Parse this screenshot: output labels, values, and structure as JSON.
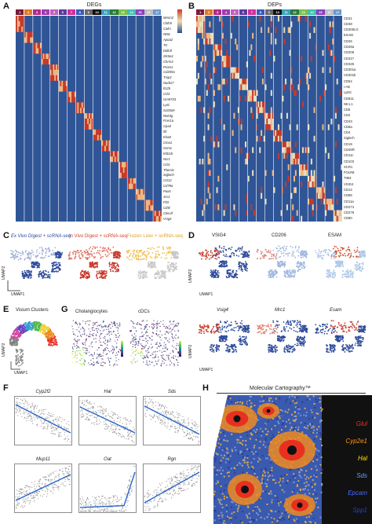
{
  "panels": {
    "A": {
      "letter": "A",
      "title": "DEGs",
      "genes": [
        "Mmrn2",
        "Cldn5",
        "Calm",
        "Nt5e",
        "Apoa2",
        "Ttr",
        "Ddit4l",
        "Slc5a1",
        "Chrm3",
        "Prom1",
        "Cd209a",
        "Tnip3",
        "Nudt17",
        "Il12b",
        "Ccl3",
        "Gm9733",
        "Ly6i",
        "S100a9",
        "Retnlg",
        "Fcer1a",
        "Cpa3",
        "Ifit",
        "Klra8",
        "Cma1",
        "Gzmc",
        "Klrb1b",
        "Ncr1",
        "Ccl4",
        "Themis",
        "Siglech",
        "Ccl12",
        "Cd79a",
        "Pax5",
        "Xcr1",
        "Flt3",
        "Cd5l",
        "Clec4f",
        "Vsig4"
      ],
      "clusters": [
        "1",
        "2",
        "3",
        "4",
        "5",
        "6",
        "7",
        "8",
        "9",
        "10",
        "11",
        "12",
        "13",
        "14",
        "15",
        "16",
        "17"
      ]
    },
    "B": {
      "letter": "B",
      "title": "DEPs",
      "proteins": [
        "CD31",
        "CD38",
        "CD300LG",
        "ESAM",
        "CD26",
        "CD49a",
        "CD206",
        "CD317",
        "CD326",
        "CD301a",
        "CD301b",
        "CD54",
        "I-AE",
        "Ly6G",
        "CD62L",
        "NK1.1",
        "CD5",
        "CD2",
        "CD43",
        "CD8a",
        "CD4",
        "Siglech",
        "CD19",
        "CD45R",
        "CD11c",
        "CD103",
        "XCR1",
        "FOLR8",
        "TIM4",
        "VSIG4",
        "CD14",
        "CD86",
        "CD11a",
        "CD274",
        "CD278",
        "CD80"
      ],
      "clusters": [
        "1",
        "2",
        "3",
        "4",
        "5",
        "6",
        "7",
        "8",
        "9",
        "10",
        "11",
        "12",
        "13",
        "14",
        "15",
        "16",
        "17"
      ]
    },
    "C": {
      "letter": "C",
      "titles": [
        "Ex Vivo Digest + scRNA-seq",
        "In Vivo Digest + scRNA-seq",
        "Frozen Liver + snRNA-seq"
      ],
      "axis_y": "UMAP2",
      "axis_x": "UMAP1"
    },
    "D": {
      "letter": "D",
      "titles_top": [
        "VSIG4",
        "CD206",
        "ESAM"
      ],
      "titles_bottom": [
        "Vsig4",
        "Mrc1",
        "Esam"
      ],
      "axis_y": "UMAP2",
      "axis_x": "UMAP1"
    },
    "E": {
      "letter": "E",
      "title": "Visium Clusters",
      "axis_y": "UMAP2",
      "axis_x": "UMAP1"
    },
    "G": {
      "letter": "G",
      "titles": [
        "Cholangiocytes",
        "cDCs"
      ]
    },
    "F": {
      "letter": "F",
      "genes": [
        "Cyp2f2",
        "Hal",
        "Sds",
        "Mup11",
        "Oat",
        "Rgn"
      ],
      "xticks": [
        "Portal",
        "Periportal",
        "Mid",
        "Pericentral",
        "Central"
      ]
    },
    "H": {
      "letter": "H",
      "title": "Molecular Cartography™",
      "legend": [
        {
          "gene": "Glul",
          "color": "#ff2a1a"
        },
        {
          "gene": "Cyp2e1",
          "color": "#ff9a1a"
        },
        {
          "gene": "Hal",
          "color": "#ffe000"
        },
        {
          "gene": "Sds",
          "color": "#5aa8ff"
        },
        {
          "gene": "Epcam",
          "color": "#4a6cff"
        },
        {
          "gene": "Spp1",
          "color": "#2a40c8"
        }
      ]
    }
  },
  "colors": {
    "heat_low": "#2b4d8f",
    "heat_high": "#c83a2a",
    "cluster": [
      "#7a1a3a",
      "#e07a2a",
      "#b02a8a",
      "#a03ab0",
      "#c060c0",
      "#5a3aa0",
      "#d0309a",
      "#3a5ac0",
      "#6a6a6a",
      "#111111",
      "#3aa0c0",
      "#2a7a3a",
      "#7ac04a",
      "#40c0b0",
      "#8a40c0",
      "#c0c0c0",
      "#6a9ad0"
    ]
  }
}
